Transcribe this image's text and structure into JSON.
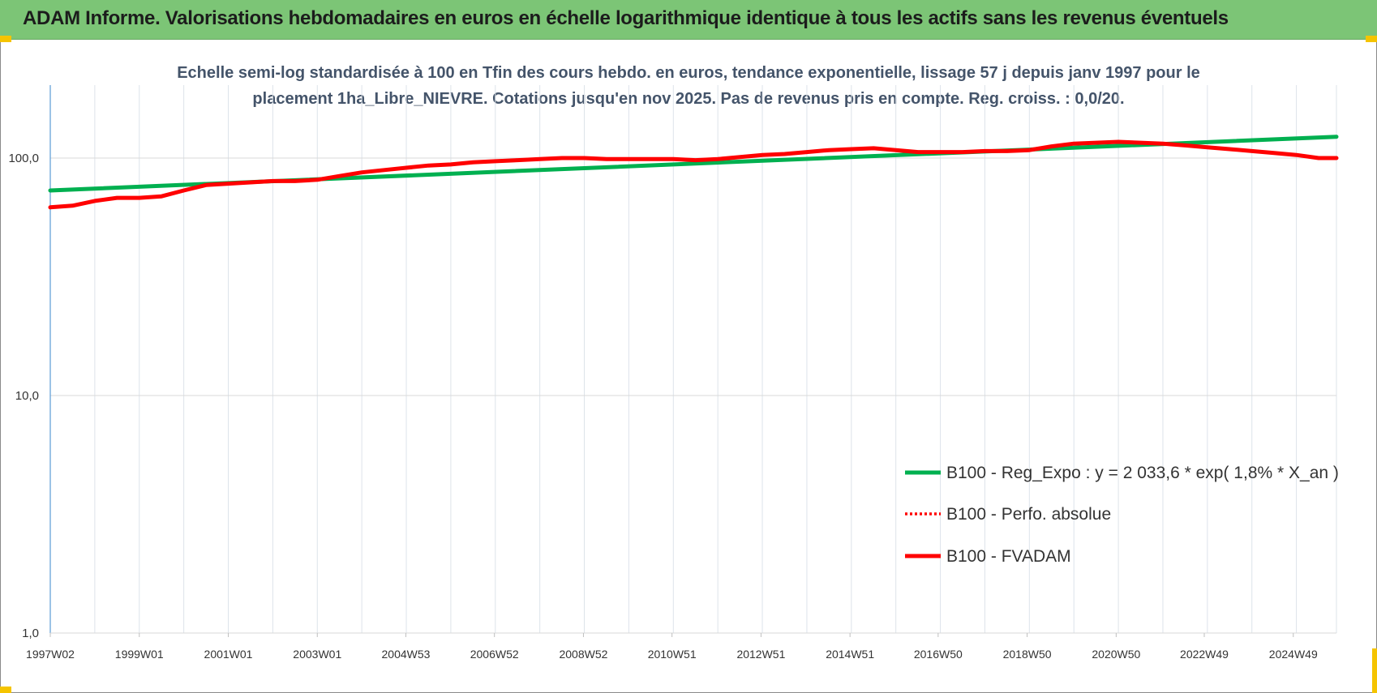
{
  "page": {
    "title": "ADAM Informe. Valorisations hebdomadaires en euros en échelle logarithmique identique à tous les actifs sans les revenus éventuels"
  },
  "chart_data": {
    "type": "line",
    "subtitle_line1": "Echelle semi-log standardisée à 100 en Tfin des cours hebdo. en euros, tendance exponentielle, lissage 57 j depuis janv 1997 pour le",
    "subtitle_line2": "placement 1ha_Libre_NIEVRE. Cotations jusqu'en nov 2025. Pas de revenus pris en compte. Reg. croiss. : 0,0/20.",
    "y_scale": "log",
    "ylim": [
      1,
      200
    ],
    "y_ticks": [
      {
        "value": 1,
        "label": "1,0"
      },
      {
        "value": 10,
        "label": "10,0"
      },
      {
        "value": 100,
        "label": "100,0"
      }
    ],
    "x_range": [
      1997.0,
      2025.9
    ],
    "x_ticks": [
      {
        "year": 1997.0,
        "label": "1997W02"
      },
      {
        "year": 1999.0,
        "label": "1999W01"
      },
      {
        "year": 2001.0,
        "label": "2001W01"
      },
      {
        "year": 2003.0,
        "label": "2003W01"
      },
      {
        "year": 2004.99,
        "label": "2004W53"
      },
      {
        "year": 2006.98,
        "label": "2006W52"
      },
      {
        "year": 2008.98,
        "label": "2008W52"
      },
      {
        "year": 2010.97,
        "label": "2010W51"
      },
      {
        "year": 2012.97,
        "label": "2012W51"
      },
      {
        "year": 2014.97,
        "label": "2014W51"
      },
      {
        "year": 2016.95,
        "label": "2016W50"
      },
      {
        "year": 2018.95,
        "label": "2018W50"
      },
      {
        "year": 2020.95,
        "label": "2020W50"
      },
      {
        "year": 2022.93,
        "label": "2022W49"
      },
      {
        "year": 2024.93,
        "label": "2024W49"
      }
    ],
    "grid": true,
    "legend_position": "bottom-right",
    "series": [
      {
        "name": "B100 - Reg_Expo : y = 2 033,6 * exp( 1,8% *  X_an )",
        "color": "#00b050",
        "style": "solid",
        "x": [
          1997.0,
          2025.9
        ],
        "y": [
          73.0,
          123.0
        ]
      },
      {
        "name": "B100 - Perfo. absolue",
        "color": "#ff0000",
        "style": "dotted",
        "x": [],
        "y": []
      },
      {
        "name": "B100 - FVADAM",
        "color": "#ff0000",
        "style": "solid",
        "x": [
          1997.0,
          1997.5,
          1998.0,
          1998.5,
          1999.0,
          1999.5,
          2000.0,
          2000.5,
          2001.0,
          2001.5,
          2002.0,
          2002.5,
          2003.0,
          2003.5,
          2004.0,
          2004.5,
          2005.0,
          2005.5,
          2006.0,
          2006.5,
          2007.0,
          2007.5,
          2008.0,
          2008.5,
          2009.0,
          2009.5,
          2010.0,
          2010.5,
          2011.0,
          2011.5,
          2012.0,
          2012.5,
          2013.0,
          2013.5,
          2014.0,
          2014.5,
          2015.0,
          2015.5,
          2016.0,
          2016.5,
          2017.0,
          2017.5,
          2018.0,
          2018.5,
          2019.0,
          2019.5,
          2020.0,
          2020.5,
          2021.0,
          2021.5,
          2022.0,
          2022.5,
          2023.0,
          2023.5,
          2024.0,
          2024.5,
          2025.0,
          2025.5,
          2025.9
        ],
        "y": [
          62,
          63,
          66,
          68,
          68,
          69,
          73,
          77,
          78,
          79,
          80,
          80,
          81,
          84,
          87,
          89,
          91,
          93,
          94,
          96,
          97,
          98,
          99,
          100,
          100,
          99,
          99,
          99,
          99,
          98,
          99,
          101,
          103,
          104,
          106,
          108,
          109,
          110,
          108,
          106,
          106,
          106,
          107,
          107,
          108,
          112,
          115,
          116,
          117,
          116,
          115,
          113,
          111,
          109,
          107,
          105,
          103,
          100,
          100
        ]
      }
    ]
  }
}
